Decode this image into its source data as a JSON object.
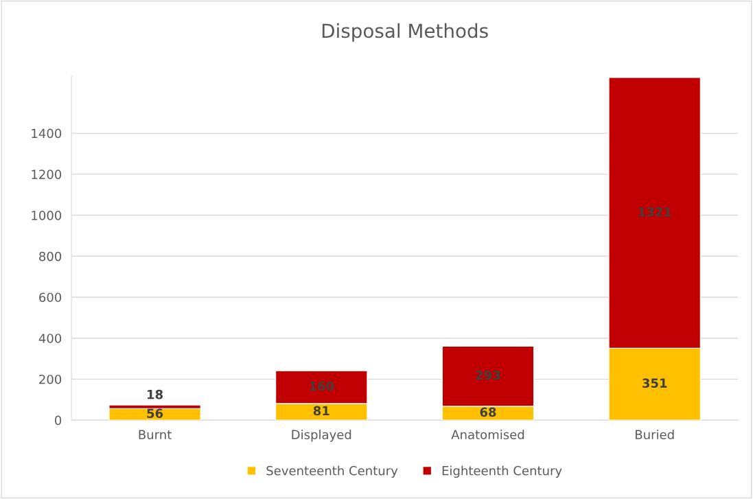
{
  "chart_data": {
    "type": "bar",
    "title": "Disposal Methods",
    "categories": [
      "Burnt",
      "Displayed",
      "Anatomised",
      "Buried"
    ],
    "stacked": true,
    "series": [
      {
        "name": "Seventeenth Century",
        "color": "#ffc000",
        "values": [
          56,
          81,
          68,
          351
        ]
      },
      {
        "name": "Eighteenth Century",
        "color": "#c00000",
        "values": [
          18,
          160,
          293,
          1321
        ]
      }
    ],
    "ylim": [
      0,
      1680
    ],
    "yticks": [
      0,
      200,
      400,
      600,
      800,
      1000,
      1200,
      1400
    ],
    "grid": "y",
    "legend": "bottom",
    "data_labels": true
  }
}
